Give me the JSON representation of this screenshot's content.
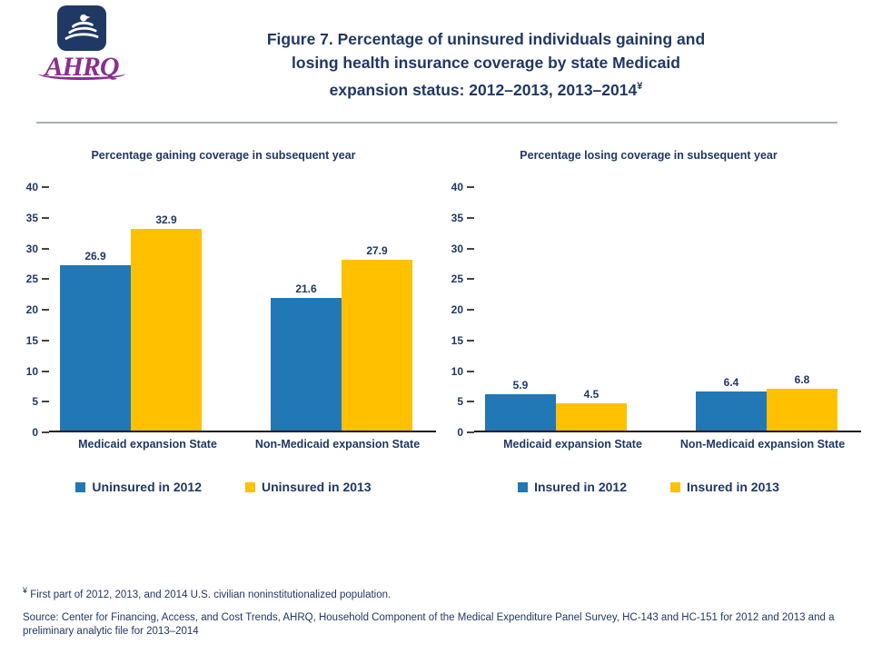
{
  "header": {
    "logo": {
      "eagle_icon": "hhs-eagle",
      "wordmark": "AHRQ"
    },
    "title_lines": [
      "Figure 7. Percentage of uninsured individuals gaining and",
      "losing health insurance coverage by state Medicaid",
      "expansion status: 2012–2013, 2013–2014"
    ],
    "title_footnote_marker": "¥"
  },
  "colors": {
    "title_navy": "#1F3864",
    "logo_purple": "#8C2E8E",
    "bar_blue": "#2277B5",
    "bar_gold": "#FFC000",
    "divider_gray": "#A7AEB8"
  },
  "chart_data": [
    {
      "type": "bar",
      "title": "Percentage gaining coverage in subsequent year",
      "categories": [
        "Medicaid expansion State",
        "Non-Medicaid expansion State"
      ],
      "series": [
        {
          "name": "Uninsured in 2012",
          "color": "#2277B5",
          "values": [
            26.9,
            21.6
          ]
        },
        {
          "name": "Uninsured in 2013",
          "color": "#FFC000",
          "values": [
            32.9,
            27.9
          ]
        }
      ],
      "ylim": [
        0,
        40
      ],
      "ytick_step": 5,
      "grid": false,
      "value_labels": true,
      "legend_position": "bottom"
    },
    {
      "type": "bar",
      "title": "Percentage losing coverage in subsequent year",
      "categories": [
        "Medicaid expansion State",
        "Non-Medicaid expansion State"
      ],
      "series": [
        {
          "name": "Insured in 2012",
          "color": "#2277B5",
          "values": [
            5.9,
            6.4
          ]
        },
        {
          "name": "Insured in 2013",
          "color": "#FFC000",
          "values": [
            4.5,
            6.8
          ]
        }
      ],
      "ylim": [
        0,
        40
      ],
      "ytick_step": 5,
      "grid": false,
      "value_labels": true,
      "legend_position": "bottom"
    }
  ],
  "footnotes": {
    "marker": "¥",
    "note": "First part of 2012, 2013, and 2014 U.S. civilian noninstitutionalized population.",
    "source": "Source: Center for Financing, Access, and Cost Trends, AHRQ, Household Component of the Medical Expenditure Panel Survey, HC-143 and HC-151 for 2012 and 2013 and a preliminary analytic file for 2013–2014"
  }
}
